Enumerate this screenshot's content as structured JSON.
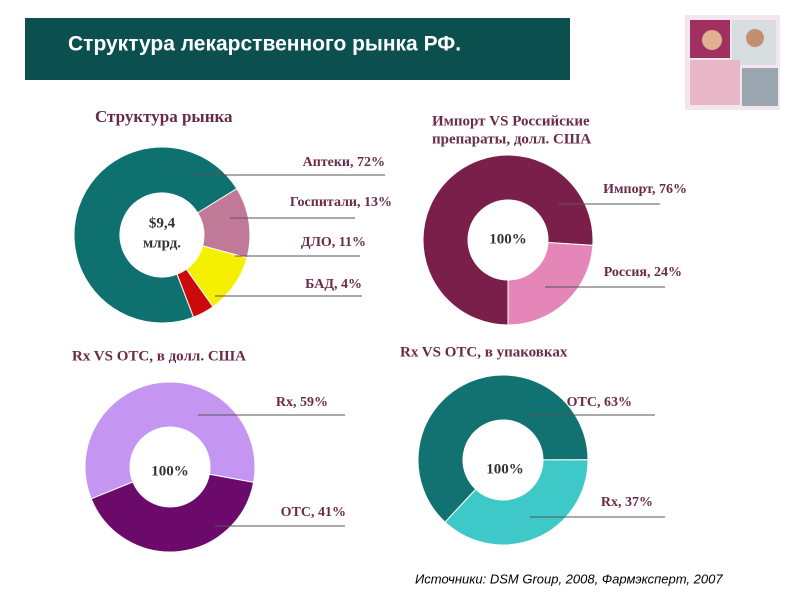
{
  "header": {
    "title": "Структура лекарственного рынка РФ."
  },
  "chart_data": [
    {
      "type": "pie",
      "title": [
        "Структура рынка"
      ],
      "center_label": [
        "$9,4",
        "млрд."
      ],
      "labels": [
        "Аптеки, 72%",
        "Госпитали, 13%",
        "ДЛО, 11%",
        "БАД, 4%"
      ],
      "values": [
        72,
        13,
        11,
        4
      ],
      "colors": [
        "#0f7070",
        "#c07a98",
        "#f4f000",
        "#cc0a0a"
      ]
    },
    {
      "type": "pie",
      "title": [
        "Импорт VS Российские",
        "препараты, долл. США"
      ],
      "center_label": [
        "100%"
      ],
      "labels": [
        "Импорт, 76%",
        "Россия, 24%"
      ],
      "values": [
        76,
        24
      ],
      "colors": [
        "#7a1f4a",
        "#e486b8"
      ]
    },
    {
      "type": "pie",
      "title": [
        "Rx VS OTC, в долл. США"
      ],
      "center_label": [
        "100%"
      ],
      "labels": [
        "Rx, 59%",
        "OTC, 41%"
      ],
      "values": [
        59,
        41
      ],
      "colors": [
        "#c496f2",
        "#6c0a6c"
      ]
    },
    {
      "type": "pie",
      "title": [
        "Rx VS OTC, в упаковках"
      ],
      "center_label": [
        "100%"
      ],
      "labels": [
        "OTC, 63%",
        "Rx, 37%"
      ],
      "values": [
        63,
        37
      ],
      "colors": [
        "#127272",
        "#3ec8c8"
      ]
    }
  ],
  "source": "Источники: DSM Group, 2008,  Фармэксперт, 2007"
}
